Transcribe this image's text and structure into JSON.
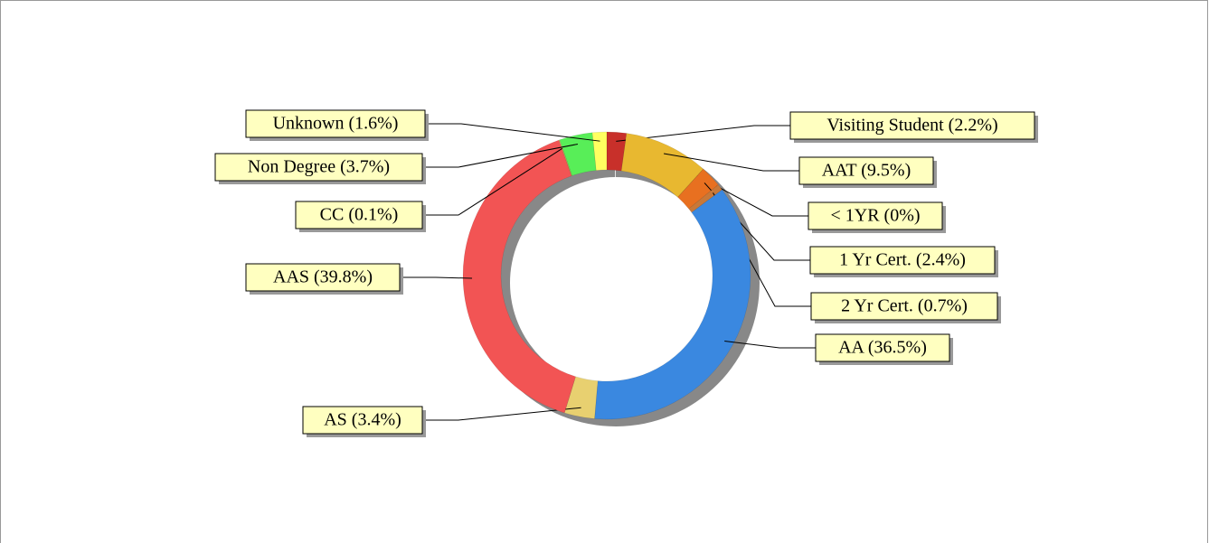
{
  "chart_data": {
    "type": "pie",
    "value_labels": [
      "Visiting Student (2.2%)",
      "AAT (9.5%)",
      "< 1YR (0%)",
      "1 Yr Cert. (2.4%)",
      "2 Yr Cert. (0.7%)",
      "AA (36.5%)",
      "AS (3.4%)",
      "AAS (39.8%)",
      "CC (0.1%)",
      "Non Degree (3.7%)",
      "Unknown (1.6%)"
    ],
    "values": [
      2.2,
      9.5,
      0,
      2.4,
      0.7,
      36.5,
      3.4,
      39.8,
      0.1,
      3.7,
      1.6
    ],
    "colors": [
      "#c8302a",
      "#e8b830",
      "#d06020",
      "#e87020",
      "#c87838",
      "#3a88e0",
      "#e8d070",
      "#f25454",
      "#c0c060",
      "#58ee58",
      "#ffff60"
    ],
    "donut": true
  }
}
